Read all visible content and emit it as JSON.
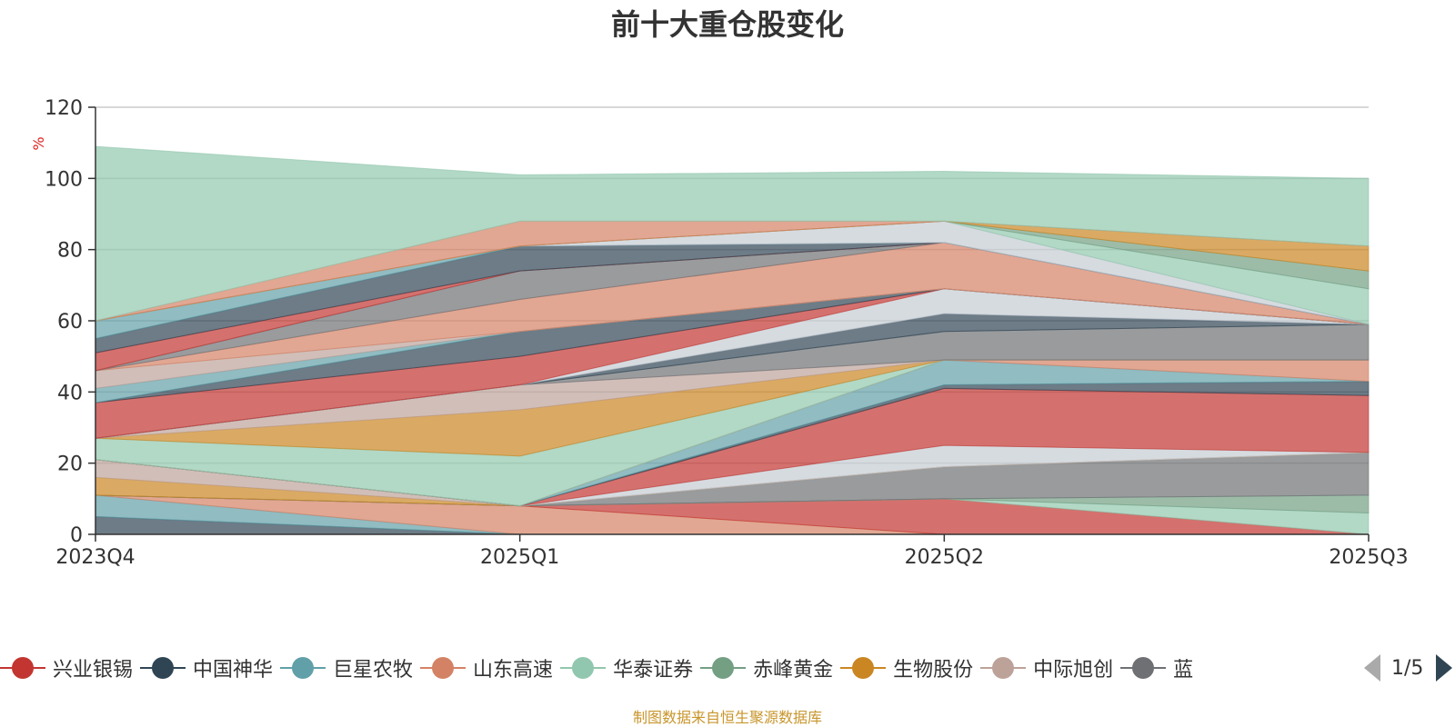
{
  "chart_data": {
    "type": "area",
    "title": "前十大重仓股变化",
    "ylabel": "%",
    "ylim": [
      0,
      120
    ],
    "yticks": [
      "0",
      "20",
      "40",
      "60",
      "80",
      "100",
      "120"
    ],
    "categories": [
      "2023Q4",
      "2025Q1",
      "2025Q2",
      "2025Q3"
    ],
    "stacked": true,
    "grid": true,
    "legend_position": "bottom",
    "legend": {
      "page": "1/5",
      "items": [
        {
          "name": "兴业银锡",
          "color": "#c23531"
        },
        {
          "name": "中国神华",
          "color": "#2f4554"
        },
        {
          "name": "巨星农牧",
          "color": "#61a0a8"
        },
        {
          "name": "山东高速",
          "color": "#d48265"
        },
        {
          "name": "华泰证券",
          "color": "#91c7ae"
        },
        {
          "name": "赤峰黄金",
          "color": "#749f83"
        },
        {
          "name": "生物股份",
          "color": "#ca8622"
        },
        {
          "name": "中际旭创",
          "color": "#bda29a"
        },
        {
          "name": "蓝",
          "color": "#6e7074"
        }
      ]
    },
    "series": [
      {
        "color": "#2f4554",
        "values": [
          5,
          0,
          0,
          0
        ]
      },
      {
        "color": "#61a0a8",
        "values": [
          6,
          0,
          0,
          0
        ]
      },
      {
        "color": "#d48265",
        "values": [
          0,
          8,
          0,
          0
        ]
      },
      {
        "color": "#c23531",
        "values": [
          0,
          0,
          10,
          0
        ]
      },
      {
        "color": "#91c7ae",
        "values": [
          0,
          0,
          0,
          6
        ]
      },
      {
        "color": "#749f83",
        "values": [
          0,
          0,
          0,
          5
        ]
      },
      {
        "color": "#6e7074",
        "values": [
          0,
          0,
          9,
          12
        ]
      },
      {
        "color": "#ca8622",
        "values": [
          5,
          0,
          0,
          0
        ]
      },
      {
        "color": "#bda29a",
        "values": [
          5,
          0,
          0,
          0
        ]
      },
      {
        "color": "#c4ccd3",
        "values": [
          0,
          0,
          6,
          0
        ]
      },
      {
        "color": "#c23531",
        "values": [
          0,
          0,
          16,
          16
        ]
      },
      {
        "color": "#2f4554",
        "values": [
          0,
          0,
          1,
          4
        ]
      },
      {
        "color": "#61a0a8",
        "values": [
          0,
          0,
          7,
          0
        ]
      },
      {
        "color": "#d48265",
        "values": [
          0,
          0,
          0,
          6
        ]
      },
      {
        "color": "#91c7ae",
        "values": [
          6,
          14,
          0,
          0
        ]
      },
      {
        "color": "#ca8622",
        "values": [
          0,
          13,
          0,
          0
        ]
      },
      {
        "color": "#bda29a",
        "values": [
          0,
          7,
          0,
          0
        ]
      },
      {
        "color": "#6e7074",
        "values": [
          0,
          0,
          8,
          10
        ]
      },
      {
        "color": "#2f4554",
        "values": [
          0,
          0,
          5,
          0
        ]
      },
      {
        "color": "#c4ccd3",
        "values": [
          0,
          0,
          7,
          0
        ]
      },
      {
        "color": "#c23531",
        "values": [
          10,
          8,
          0,
          0
        ]
      },
      {
        "color": "#2f4554",
        "values": [
          0,
          7,
          0,
          0
        ]
      },
      {
        "color": "#61a0a8",
        "values": [
          4,
          0,
          0,
          0
        ]
      },
      {
        "color": "#bda29a",
        "values": [
          5,
          0,
          0,
          0
        ]
      },
      {
        "color": "#d48265",
        "values": [
          0,
          9,
          13,
          0
        ]
      },
      {
        "color": "#6e7074",
        "values": [
          0,
          8,
          0,
          0
        ]
      },
      {
        "color": "#c23531",
        "values": [
          5,
          0,
          0,
          0
        ]
      },
      {
        "color": "#2f4554",
        "values": [
          4,
          7,
          0,
          0
        ]
      },
      {
        "color": "#61a0a8",
        "values": [
          5,
          0,
          0,
          0
        ]
      },
      {
        "color": "#c4ccd3",
        "values": [
          0,
          0,
          6,
          0
        ]
      },
      {
        "color": "#91c7ae",
        "values": [
          0,
          0,
          0,
          10
        ]
      },
      {
        "color": "#749f83",
        "values": [
          0,
          0,
          0,
          5
        ]
      },
      {
        "color": "#ca8622",
        "values": [
          0,
          0,
          0,
          7
        ]
      },
      {
        "color": "#d48265",
        "values": [
          0,
          7,
          0,
          0
        ]
      },
      {
        "color": "#c4ccd3",
        "values": [
          0,
          0,
          0,
          0
        ]
      },
      {
        "color": "#91c7ae",
        "values": [
          49,
          13,
          14,
          19
        ]
      }
    ],
    "source": "制图数据来自恒生聚源数据库"
  }
}
